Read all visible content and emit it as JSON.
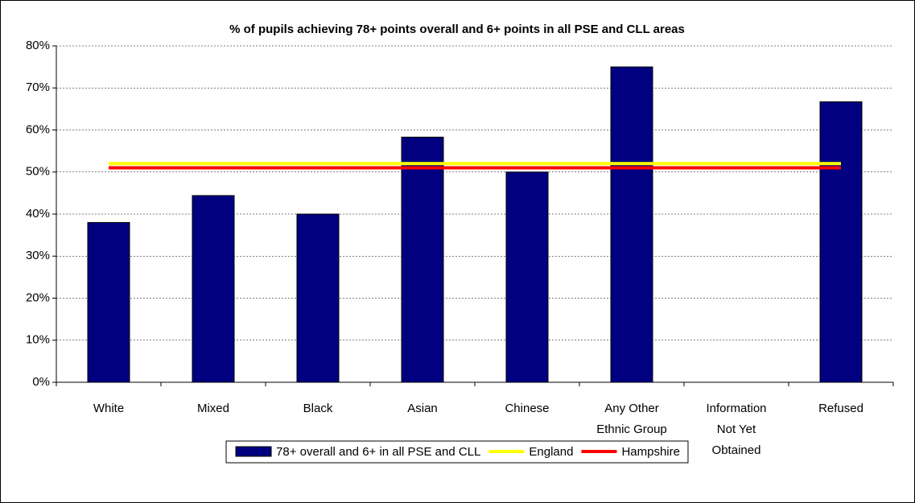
{
  "chart_data": {
    "type": "bar",
    "title": "% of pupils achieving 78+ points overall and 6+ points in all PSE and CLL areas",
    "categories": [
      "White",
      "Mixed",
      "Black",
      "Asian",
      "Chinese",
      "Any Other Ethnic Group",
      "Information Not Yet Obtained",
      "Refused"
    ],
    "series": [
      {
        "name": "78+ overall and 6+ in all PSE and CLL",
        "color": "#000080",
        "type": "bar",
        "values": [
          38,
          44.4,
          40,
          58.3,
          50,
          75,
          null,
          66.7
        ]
      },
      {
        "name": "England",
        "color": "#ffff00",
        "type": "line",
        "values": [
          52,
          52,
          52,
          52,
          52,
          52,
          52,
          52
        ]
      },
      {
        "name": "Hampshire",
        "color": "#ff0000",
        "type": "line",
        "values": [
          51,
          51,
          51,
          51,
          51,
          51,
          51,
          51
        ]
      }
    ],
    "ylim": [
      0,
      80
    ],
    "yticks": [
      {
        "value": 0,
        "label": "0%"
      },
      {
        "value": 10,
        "label": "10%"
      },
      {
        "value": 20,
        "label": "20%"
      },
      {
        "value": 30,
        "label": "30%"
      },
      {
        "value": 40,
        "label": "40%"
      },
      {
        "value": 50,
        "label": "50%"
      },
      {
        "value": 60,
        "label": "60%"
      },
      {
        "value": 70,
        "label": "70%"
      },
      {
        "value": 80,
        "label": "80%"
      }
    ],
    "grid": true
  }
}
